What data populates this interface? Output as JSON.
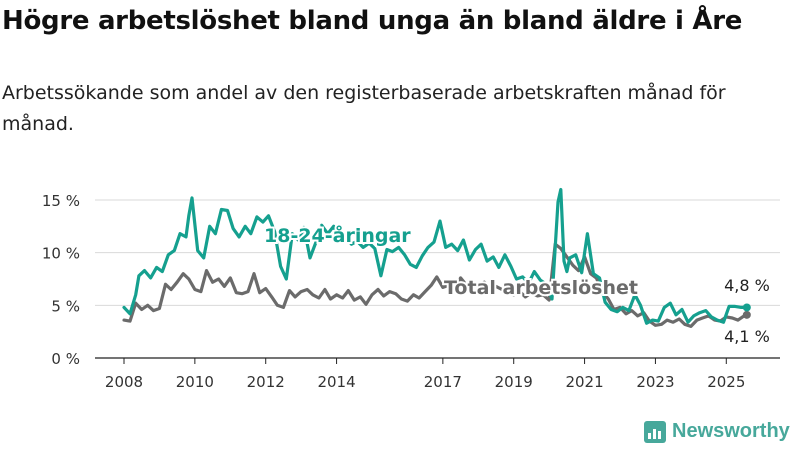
{
  "header": {
    "title": "Högre arbetslöshet bland unga än bland äldre i Åre",
    "subtitle": "Arbetssökande som andel av den registerbaserade arbetskraften månad för månad."
  },
  "brand": {
    "name": "Newsworthy",
    "color": "#47a89b"
  },
  "chart_data": {
    "type": "line",
    "ylim": [
      0,
      15
    ],
    "xlim": [
      2008.0,
      2025.75
    ],
    "y_ticks": [
      0,
      5,
      10,
      15
    ],
    "y_tick_labels": [
      "0 %",
      "5 %",
      "10 %",
      "15 %"
    ],
    "x_ticks": [
      2008,
      2010,
      2012,
      2014,
      2017,
      2019,
      2021,
      2023,
      2025
    ],
    "x_tick_labels": [
      "2008",
      "2010",
      "2012",
      "2014",
      "2017",
      "2019",
      "2021",
      "2023",
      "2025"
    ],
    "grid": "horizontal",
    "series": [
      {
        "name": "18-24-åringar",
        "color": "#15a08f",
        "end_label": "4,8 %",
        "x": [
          2008.0,
          2008.17,
          2008.33,
          2008.42,
          2008.58,
          2008.75,
          2008.92,
          2009.08,
          2009.25,
          2009.42,
          2009.58,
          2009.75,
          2009.83,
          2009.92,
          2010.08,
          2010.25,
          2010.42,
          2010.58,
          2010.75,
          2010.92,
          2011.08,
          2011.25,
          2011.42,
          2011.58,
          2011.75,
          2011.92,
          2012.08,
          2012.25,
          2012.42,
          2012.58,
          2012.75,
          2012.92,
          2013.08,
          2013.25,
          2013.42,
          2013.58,
          2013.75,
          2013.92,
          2014.08,
          2014.25,
          2014.42,
          2014.58,
          2014.75,
          2014.92,
          2015.08,
          2015.25,
          2015.42,
          2015.58,
          2015.75,
          2015.92,
          2016.08,
          2016.25,
          2016.42,
          2016.58,
          2016.75,
          2016.92,
          2017.08,
          2017.25,
          2017.42,
          2017.58,
          2017.75,
          2017.92,
          2018.08,
          2018.25,
          2018.42,
          2018.58,
          2018.75,
          2018.92,
          2019.08,
          2019.25,
          2019.42,
          2019.58,
          2019.75,
          2019.92,
          2020.08,
          2020.25,
          2020.33,
          2020.42,
          2020.5,
          2020.58,
          2020.75,
          2020.92,
          2021.08,
          2021.25,
          2021.42,
          2021.58,
          2021.75,
          2021.92,
          2022.08,
          2022.25,
          2022.42,
          2022.58,
          2022.75,
          2022.92,
          2023.08,
          2023.25,
          2023.42,
          2023.58,
          2023.75,
          2023.92,
          2024.08,
          2024.25,
          2024.42,
          2024.58,
          2024.75,
          2024.92,
          2025.08,
          2025.25,
          2025.42,
          2025.58
        ],
        "values": [
          4.8,
          4.2,
          6.0,
          7.8,
          8.3,
          7.6,
          8.6,
          8.2,
          9.8,
          10.2,
          11.8,
          11.5,
          13.5,
          15.2,
          10.2,
          9.5,
          12.5,
          11.8,
          14.1,
          14.0,
          12.3,
          11.5,
          12.5,
          11.8,
          13.4,
          12.9,
          13.5,
          12.0,
          8.7,
          7.5,
          11.8,
          11.2,
          12.4,
          9.5,
          11.0,
          12.6,
          11.8,
          12.5,
          11.0,
          11.5,
          10.8,
          11.1,
          10.5,
          10.9,
          10.4,
          7.8,
          10.3,
          10.1,
          10.5,
          9.8,
          8.9,
          8.6,
          9.7,
          10.5,
          11.0,
          13.0,
          10.5,
          10.8,
          10.2,
          11.2,
          9.3,
          10.3,
          10.8,
          9.2,
          9.6,
          8.6,
          9.8,
          8.7,
          7.5,
          7.7,
          7.1,
          8.2,
          7.4,
          7.0,
          5.6,
          14.8,
          16.0,
          9.2,
          8.2,
          9.5,
          9.8,
          8.1,
          11.8,
          8.0,
          7.6,
          5.3,
          4.6,
          4.4,
          4.8,
          4.5,
          6.0,
          5.0,
          3.3,
          3.6,
          3.5,
          4.8,
          5.2,
          4.1,
          4.6,
          3.4,
          4.0,
          4.3,
          4.5,
          3.9,
          3.6,
          3.4,
          4.9,
          4.9,
          4.8,
          4.8
        ]
      },
      {
        "name": "Total arbetslöshet",
        "color": "#6b6b6b",
        "end_label": "4,1 %",
        "x": [
          2008.0,
          2008.17,
          2008.33,
          2008.5,
          2008.67,
          2008.83,
          2009.0,
          2009.17,
          2009.33,
          2009.5,
          2009.67,
          2009.83,
          2010.0,
          2010.17,
          2010.33,
          2010.5,
          2010.67,
          2010.83,
          2011.0,
          2011.17,
          2011.33,
          2011.5,
          2011.67,
          2011.83,
          2012.0,
          2012.17,
          2012.33,
          2012.5,
          2012.67,
          2012.83,
          2013.0,
          2013.17,
          2013.33,
          2013.5,
          2013.67,
          2013.83,
          2014.0,
          2014.17,
          2014.33,
          2014.5,
          2014.67,
          2014.83,
          2015.0,
          2015.17,
          2015.33,
          2015.5,
          2015.67,
          2015.83,
          2016.0,
          2016.17,
          2016.33,
          2016.5,
          2016.67,
          2016.83,
          2017.0,
          2017.17,
          2017.33,
          2017.5,
          2017.67,
          2017.83,
          2018.0,
          2018.17,
          2018.33,
          2018.5,
          2018.67,
          2018.83,
          2019.0,
          2019.17,
          2019.33,
          2019.5,
          2019.67,
          2019.83,
          2020.0,
          2020.17,
          2020.33,
          2020.5,
          2020.67,
          2020.83,
          2021.0,
          2021.17,
          2021.33,
          2021.5,
          2021.67,
          2021.83,
          2022.0,
          2022.17,
          2022.33,
          2022.5,
          2022.67,
          2022.83,
          2023.0,
          2023.17,
          2023.33,
          2023.5,
          2023.67,
          2023.83,
          2024.0,
          2024.17,
          2024.33,
          2024.5,
          2024.67,
          2024.83,
          2025.0,
          2025.17,
          2025.33,
          2025.5,
          2025.58
        ],
        "values": [
          3.6,
          3.5,
          5.2,
          4.6,
          5.0,
          4.5,
          4.7,
          7.0,
          6.5,
          7.2,
          8.0,
          7.5,
          6.5,
          6.3,
          8.3,
          7.2,
          7.5,
          6.8,
          7.6,
          6.2,
          6.1,
          6.3,
          8.0,
          6.2,
          6.6,
          5.8,
          5.0,
          4.8,
          6.4,
          5.8,
          6.3,
          6.5,
          6.0,
          5.7,
          6.5,
          5.6,
          6.0,
          5.7,
          6.4,
          5.5,
          5.8,
          5.1,
          6.0,
          6.5,
          5.9,
          6.3,
          6.1,
          5.6,
          5.4,
          6.0,
          5.7,
          6.3,
          6.9,
          7.7,
          6.7,
          6.9,
          6.5,
          7.6,
          6.9,
          7.1,
          6.8,
          7.2,
          6.6,
          6.8,
          6.5,
          6.2,
          6.0,
          6.3,
          5.8,
          6.2,
          5.9,
          6.0,
          5.5,
          10.8,
          10.4,
          9.6,
          8.8,
          8.3,
          9.6,
          8.0,
          7.6,
          6.3,
          5.6,
          4.6,
          4.8,
          4.2,
          4.5,
          4.0,
          4.3,
          3.5,
          3.1,
          3.2,
          3.6,
          3.4,
          3.7,
          3.2,
          3.0,
          3.6,
          3.8,
          4.0,
          3.6,
          3.5,
          3.9,
          3.8,
          3.6,
          4.0,
          4.1
        ]
      }
    ]
  }
}
